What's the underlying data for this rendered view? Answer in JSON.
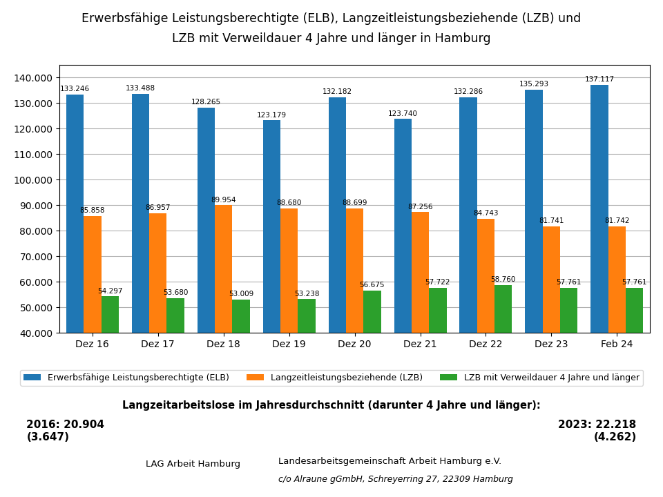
{
  "chart_data": {
    "type": "bar",
    "title": "Erwerbsfähige Leistungsberechtigte (ELB), Langzeitleistungsbeziehende (LZB) und",
    "subtitle": "LZB mit Verweildauer 4 Jahre und länger in Hamburg",
    "categories": [
      "Dez 16",
      "Dez 17",
      "Dez 18",
      "Dez 19",
      "Dez 20",
      "Dez 21",
      "Dez 22",
      "Dez 23",
      "Feb 24"
    ],
    "series": [
      {
        "name": "Erwerbsfähige Leistungsberechtigte (ELB)",
        "values": [
          133246,
          133488,
          128265,
          123179,
          132182,
          123740,
          132286,
          135293,
          137117
        ],
        "value_labels": [
          "133.246",
          "133.488",
          "128.265",
          "123.179",
          "132.182",
          "123.740",
          "132.286",
          "135.293",
          "137.117"
        ]
      },
      {
        "name": "Langzeitleistungsbeziehende (LZB)",
        "values": [
          85858,
          86957,
          89954,
          88680,
          88699,
          87256,
          84743,
          81741,
          81742
        ],
        "value_labels": [
          "85.858",
          "86.957",
          "89.954",
          "88.680",
          "88.699",
          "87.256",
          "84.743",
          "81.741",
          "81.742"
        ]
      },
      {
        "name": "LZB mit Verweildauer 4 Jahre und länger",
        "values": [
          54297,
          53680,
          53009,
          53238,
          56675,
          57722,
          58760,
          57761,
          57761
        ],
        "value_labels": [
          "54.297",
          "53.680",
          "53.009",
          "53.238",
          "56.675",
          "57.722",
          "58.760",
          "57.761",
          "57.761"
        ]
      }
    ],
    "ylim": [
      40000,
      145000
    ],
    "yticks": [
      {
        "value": 40000,
        "label": "40.000"
      },
      {
        "value": 50000,
        "label": "50.000"
      },
      {
        "value": 60000,
        "label": "60.000"
      },
      {
        "value": 70000,
        "label": "70.000"
      },
      {
        "value": 80000,
        "label": "80.000"
      },
      {
        "value": 90000,
        "label": "90.000"
      },
      {
        "value": 100000,
        "label": "100.000"
      },
      {
        "value": 110000,
        "label": "110.000"
      },
      {
        "value": 120000,
        "label": "120.000"
      },
      {
        "value": 130000,
        "label": "130.000"
      },
      {
        "value": 140000,
        "label": "140.000"
      }
    ],
    "grid": true,
    "legend": "lower center",
    "data_labels": true,
    "annotations": [
      "Langzeitarbeitslose im Jahresdurchschnitt (darunter 4 Jahre und länger):",
      "2016: 20.904\n(3.647)",
      "2023: 22.218\n(4.262)",
      "LAG Arbeit Hamburg",
      "Landesarbeitsgemeinschaft Arbeit Hamburg e.V.",
      "c/o Alraune gGmbH, Schreyerring 27, 22309 Hamburg"
    ]
  }
}
